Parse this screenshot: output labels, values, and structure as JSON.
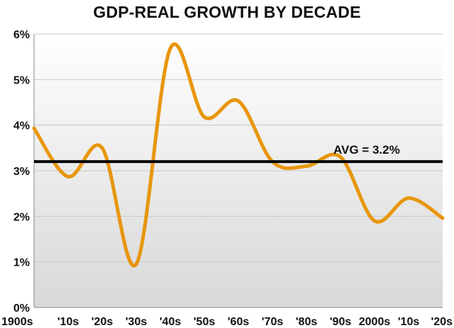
{
  "chart_data": {
    "type": "line",
    "title": "GDP-REAL GROWTH BY DECADE",
    "xlabel": "",
    "ylabel": "",
    "categories": [
      "1900s",
      "'10s",
      "'20s",
      "'30s",
      "'40s",
      "'50s",
      "'60s",
      "'70s",
      "'80s",
      "'90s",
      "2000s",
      "'10s",
      "'20s"
    ],
    "series": [
      {
        "values": [
          3.93,
          2.87,
          3.5,
          0.95,
          5.68,
          4.18,
          4.53,
          3.2,
          3.1,
          3.3,
          1.9,
          2.4,
          1.96
        ]
      }
    ],
    "ylim": [
      0,
      6
    ],
    "yticks": [
      0,
      1,
      2,
      3,
      4,
      5,
      6
    ],
    "ytick_labels": [
      "0%",
      "1%",
      "2%",
      "3%",
      "4%",
      "5%",
      "6%"
    ],
    "average": {
      "value": 3.2,
      "label": "AVG = 3.2%"
    },
    "grid": true,
    "colors": {
      "line": "#E8960C",
      "average_line": "#000000",
      "plot_bg_top": "#FFFFFF",
      "plot_bg_bottom": "#D8D8D8",
      "grid": "#C8C8C8"
    }
  }
}
